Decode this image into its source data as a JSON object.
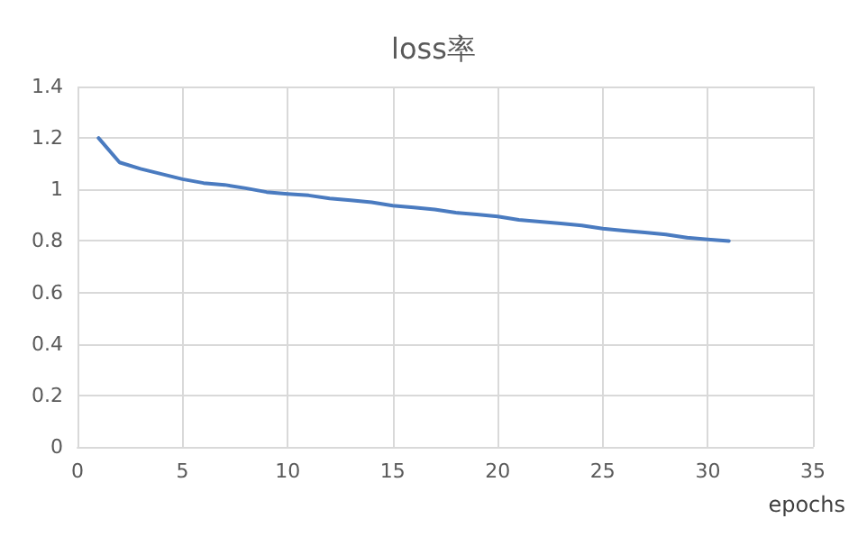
{
  "chart_data": {
    "type": "line",
    "title": "loss率",
    "xlabel": "epochs",
    "x": [
      1,
      2,
      3,
      4,
      5,
      6,
      7,
      8,
      9,
      10,
      11,
      12,
      13,
      14,
      15,
      16,
      17,
      18,
      19,
      20,
      21,
      22,
      23,
      24,
      25,
      26,
      27,
      28,
      29,
      30,
      31
    ],
    "series": [
      {
        "color": "#4a7bc0",
        "values": [
          1.2,
          1.105,
          1.08,
          1.06,
          1.04,
          1.025,
          1.018,
          1.005,
          0.99,
          0.983,
          0.977,
          0.965,
          0.958,
          0.95,
          0.937,
          0.93,
          0.922,
          0.91,
          0.903,
          0.895,
          0.882,
          0.875,
          0.868,
          0.86,
          0.848,
          0.84,
          0.833,
          0.825,
          0.813,
          0.806,
          0.8
        ]
      }
    ],
    "xlim": [
      0,
      35
    ],
    "xticks": [
      0,
      5,
      10,
      15,
      20,
      25,
      30,
      35
    ],
    "ylim": [
      0,
      1.4
    ],
    "yticks": [
      0,
      0.2,
      0.4,
      0.6,
      0.8,
      1,
      1.2,
      1.4
    ],
    "grid": true,
    "marker": "none",
    "line_style": "solid"
  }
}
